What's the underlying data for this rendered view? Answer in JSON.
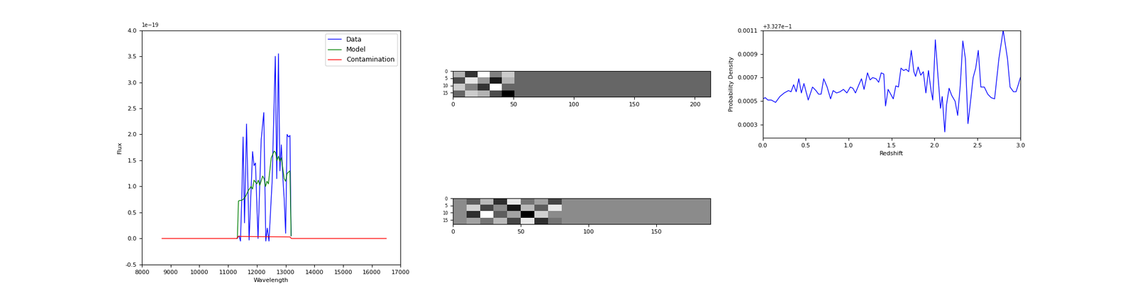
{
  "chart_data": [
    {
      "type": "line",
      "x_label": "Wavelength",
      "y_label": "Flux",
      "annotations": [
        "1e−19"
      ],
      "xlim": [
        8000,
        17000
      ],
      "ylim": [
        -0.5,
        4.0
      ],
      "xticks": [
        8000,
        9000,
        10000,
        11000,
        12000,
        13000,
        14000,
        15000,
        16000,
        17000
      ],
      "yticks": [
        -0.5,
        0.0,
        0.5,
        1.0,
        1.5,
        2.0,
        2.5,
        3.0,
        3.5,
        4.0
      ],
      "legend": "upper right",
      "series": [
        {
          "name": "Data",
          "color": "#0000ff",
          "x": [
            11300,
            11380,
            11430,
            11480,
            11520,
            11570,
            11640,
            11730,
            11850,
            11900,
            11950,
            12040,
            12150,
            12240,
            12310,
            12360,
            12420,
            12530,
            12640,
            12690,
            12750,
            12800,
            12850,
            12900,
            12950,
            13000,
            13050,
            13100,
            13150,
            13190
          ],
          "values": [
            0.0,
            0.05,
            -0.05,
            0.9,
            1.95,
            0.3,
            2.2,
            -0.03,
            1.67,
            1.4,
            1.45,
            0.0,
            1.9,
            2.42,
            -0.05,
            0.2,
            -0.05,
            1.1,
            3.5,
            1.15,
            3.55,
            1.3,
            1.8,
            1.2,
            0.75,
            0.1,
            2.0,
            1.95,
            1.98,
            0.05
          ]
        },
        {
          "name": "Model",
          "color": "#008000",
          "x": [
            11320,
            11360,
            11400,
            11450,
            11520,
            11600,
            11700,
            11800,
            11850,
            11900,
            12000,
            12050,
            12100,
            12200,
            12250,
            12300,
            12350,
            12400,
            12500,
            12600,
            12650,
            12700,
            12750,
            12800,
            12850,
            12950,
            13000,
            13050,
            13150,
            13190
          ],
          "values": [
            0.0,
            0.72,
            0.73,
            0.73,
            0.75,
            0.8,
            0.92,
            1.0,
            0.95,
            1.12,
            1.05,
            1.12,
            1.02,
            1.2,
            1.15,
            1.0,
            1.1,
            1.05,
            1.55,
            1.68,
            1.65,
            1.5,
            1.58,
            1.48,
            1.55,
            1.15,
            1.1,
            1.25,
            1.3,
            0.05
          ]
        },
        {
          "name": "Contamination",
          "color": "#ff0000",
          "x": [
            8700,
            11300,
            11350,
            13150,
            13200,
            16500
          ],
          "values": [
            0.0,
            0.0,
            0.04,
            0.03,
            0.0,
            0.0
          ]
        }
      ]
    },
    {
      "type": "heatmap",
      "xlim": [
        0,
        213
      ],
      "ylim": [
        18,
        0
      ],
      "xticks": [
        0,
        50,
        100,
        150,
        200
      ],
      "yticks": [
        0,
        5,
        10,
        15
      ],
      "cells": [
        [
          0.55,
          0.3,
          0.7,
          0.45,
          0.6,
          0.4,
          0.4,
          0.4,
          0.4,
          0.4,
          0.4,
          0.4,
          0.4,
          0.4,
          0.4,
          0.4,
          0.4,
          0.4,
          0.4,
          0.4,
          0.4
        ],
        [
          0.35,
          0.65,
          0.5,
          0.25,
          0.55,
          0.4,
          0.4,
          0.4,
          0.4,
          0.4,
          0.4,
          0.4,
          0.4,
          0.4,
          0.4,
          0.4,
          0.4,
          0.4,
          0.4,
          0.4,
          0.4
        ],
        [
          0.6,
          0.45,
          0.3,
          0.7,
          0.4,
          0.4,
          0.4,
          0.4,
          0.4,
          0.4,
          0.4,
          0.4,
          0.4,
          0.4,
          0.4,
          0.4,
          0.4,
          0.4,
          0.4,
          0.4,
          0.4
        ],
        [
          0.4,
          0.6,
          0.55,
          0.35,
          0.2,
          0.4,
          0.4,
          0.4,
          0.4,
          0.4,
          0.4,
          0.4,
          0.4,
          0.4,
          0.4,
          0.4,
          0.4,
          0.4,
          0.4,
          0.4,
          0.4
        ]
      ]
    },
    {
      "type": "heatmap",
      "xlim": [
        0,
        190
      ],
      "ylim": [
        18,
        0
      ],
      "xticks": [
        0,
        50,
        100,
        150
      ],
      "yticks": [
        0,
        5,
        10,
        15
      ],
      "cells": [
        [
          0.6,
          0.5,
          0.7,
          0.4,
          0.8,
          0.55,
          0.65,
          0.45,
          0.6,
          0.6,
          0.6,
          0.6,
          0.6,
          0.6,
          0.6,
          0.6,
          0.6,
          0.6,
          0.6
        ],
        [
          0.6,
          0.75,
          0.45,
          0.6,
          0.35,
          0.7,
          0.5,
          0.8,
          0.6,
          0.6,
          0.6,
          0.6,
          0.6,
          0.6,
          0.6,
          0.6,
          0.6,
          0.6,
          0.6
        ],
        [
          0.6,
          0.4,
          0.85,
          0.5,
          0.65,
          0.3,
          0.75,
          0.6,
          0.6,
          0.6,
          0.6,
          0.6,
          0.6,
          0.6,
          0.6,
          0.6,
          0.6,
          0.6,
          0.6
        ],
        [
          0.6,
          0.65,
          0.55,
          0.7,
          0.45,
          0.8,
          0.4,
          0.55,
          0.6,
          0.6,
          0.6,
          0.6,
          0.6,
          0.6,
          0.6,
          0.6,
          0.6,
          0.6,
          0.6
        ]
      ]
    },
    {
      "type": "line",
      "x_label": "Redshift",
      "y_label": "Probability Density",
      "annotations": [
        "+3.327e−1"
      ],
      "xlim": [
        0.0,
        3.0
      ],
      "ylim": [
        0.00019,
        0.0011
      ],
      "xticks": [
        0.0,
        0.5,
        1.0,
        1.5,
        2.0,
        2.5,
        3.0
      ],
      "yticks": [
        0.0003,
        0.0005,
        0.0007,
        0.0009,
        0.0011
      ],
      "series": [
        {
          "color": "#0000ff",
          "x": [
            0.0,
            0.03,
            0.06,
            0.1,
            0.15,
            0.2,
            0.25,
            0.3,
            0.33,
            0.36,
            0.39,
            0.42,
            0.45,
            0.48,
            0.53,
            0.58,
            0.62,
            0.65,
            0.68,
            0.71,
            0.75,
            0.79,
            0.82,
            0.86,
            0.9,
            0.94,
            0.98,
            1.02,
            1.05,
            1.08,
            1.12,
            1.15,
            1.18,
            1.22,
            1.25,
            1.28,
            1.32,
            1.35,
            1.38,
            1.41,
            1.43,
            1.46,
            1.49,
            1.52,
            1.55,
            1.58,
            1.61,
            1.64,
            1.67,
            1.7,
            1.73,
            1.76,
            1.78,
            1.81,
            1.84,
            1.87,
            1.9,
            1.93,
            1.96,
            1.98,
            2.01,
            2.04,
            2.07,
            2.09,
            2.12,
            2.14,
            2.17,
            2.2,
            2.24,
            2.27,
            2.3,
            2.33,
            2.36,
            2.39,
            2.42,
            2.45,
            2.48,
            2.51,
            2.54,
            2.58,
            2.62,
            2.66,
            2.7,
            2.75,
            2.8,
            2.85,
            2.88,
            2.92,
            2.95,
            2.98,
            3.0
          ],
          "values": [
            0.00052,
            0.00053,
            0.00051,
            0.00051,
            0.00049,
            0.00054,
            0.00057,
            0.00059,
            0.00058,
            0.00064,
            0.00058,
            0.00069,
            0.00057,
            0.00065,
            0.00051,
            0.00062,
            0.00059,
            0.00056,
            0.00056,
            0.00069,
            0.00062,
            0.00052,
            0.00059,
            0.00057,
            0.00058,
            0.0006,
            0.00057,
            0.00062,
            0.00061,
            0.00057,
            0.00064,
            0.00069,
            0.0006,
            0.00074,
            0.00068,
            0.0007,
            0.00069,
            0.00066,
            0.00074,
            0.00073,
            0.00046,
            0.0006,
            0.00056,
            0.00052,
            0.00063,
            0.00062,
            0.00078,
            0.00076,
            0.00077,
            0.00075,
            0.00093,
            0.00075,
            0.00071,
            0.00079,
            0.00072,
            0.00075,
            0.00057,
            0.00076,
            0.00059,
            0.00051,
            0.00102,
            0.00072,
            0.00044,
            0.00054,
            0.00024,
            0.00047,
            0.00061,
            0.00055,
            0.0005,
            0.00038,
            0.00063,
            0.00101,
            0.00086,
            0.00031,
            0.0005,
            0.0007,
            0.00078,
            0.00093,
            0.00062,
            0.00062,
            0.00056,
            0.00053,
            0.00052,
            0.00086,
            0.0011,
            0.00086,
            0.00062,
            0.00058,
            0.00058,
            0.00065,
            0.0007
          ]
        }
      ]
    }
  ]
}
